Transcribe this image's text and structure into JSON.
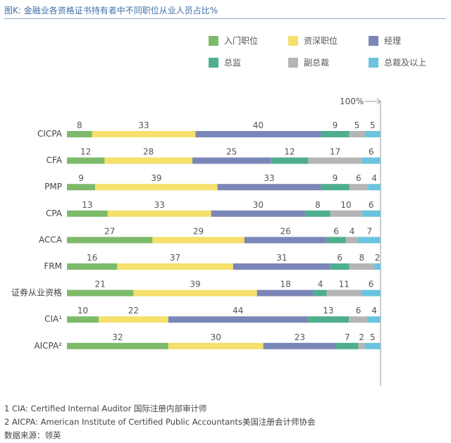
{
  "title": "图K: 金融业各资格证书持有者中不同职位从业人员占比%",
  "legend_order": [
    "入门职位",
    "资深职位",
    "经理",
    "总监",
    "副总裁",
    "总裁及以上"
  ],
  "colors": {
    "入门职位": "#7dbb6a",
    "资深职位": "#f4e06a",
    "经理": "#7b86b8",
    "总监": "#4fae8f",
    "副总裁": "#b5b5b5",
    "总裁及以上": "#6cc3dd"
  },
  "chart_data": {
    "type": "bar",
    "stacked": true,
    "orientation": "horizontal",
    "full_scale_label": "100%",
    "categories": [
      "CICPA",
      "CFA",
      "PMP",
      "CPA",
      "ACCA",
      "FRM",
      "证券从业资格",
      "CIA¹",
      "AICPA²"
    ],
    "series": [
      {
        "name": "入门职位",
        "values": [
          8,
          12,
          9,
          13,
          27,
          16,
          21,
          10,
          32
        ]
      },
      {
        "name": "资深职位",
        "values": [
          33,
          28,
          39,
          33,
          29,
          37,
          39,
          22,
          30
        ]
      },
      {
        "name": "经理",
        "values": [
          40,
          25,
          33,
          30,
          26,
          31,
          18,
          44,
          23
        ]
      },
      {
        "name": "总监",
        "values": [
          9,
          12,
          9,
          8,
          6,
          6,
          4,
          13,
          7
        ]
      },
      {
        "name": "副总裁",
        "values": [
          5,
          17,
          6,
          10,
          4,
          8,
          11,
          6,
          2
        ]
      },
      {
        "name": "总裁及以上",
        "values": [
          5,
          6,
          4,
          6,
          7,
          2,
          6,
          4,
          5
        ]
      }
    ]
  },
  "footnotes": [
    "1 CIA: Certified Internal Auditor 国际注册内部审计师",
    "2 AICPA: American Institute of Certified Public Accountants美国注册会计师协会",
    "数据来源：领英"
  ]
}
